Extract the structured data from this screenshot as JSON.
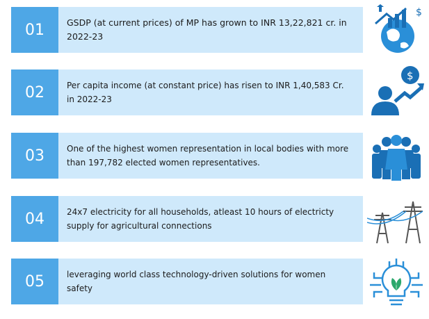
{
  "items": [
    {
      "number": "01",
      "text": "GSDP (at current prices) of MP  has grown to INR 13,22,821 cr. in 2022-23"
    },
    {
      "number": "02",
      "text": "Per capita income (at constant price) has risen to INR 1,40,583 Cr. in 2022-23"
    },
    {
      "number": "03",
      "text": "One of the highest women representation in local bodies with more than 197,782 elected women representatives."
    },
    {
      "number": "04",
      "text": "24x7 electricity for all households, atleast 10 hours of electricty supply for agricultural connections"
    },
    {
      "number": "05",
      "text": "leveraging world class technology-driven solutions for women safety"
    }
  ]
}
